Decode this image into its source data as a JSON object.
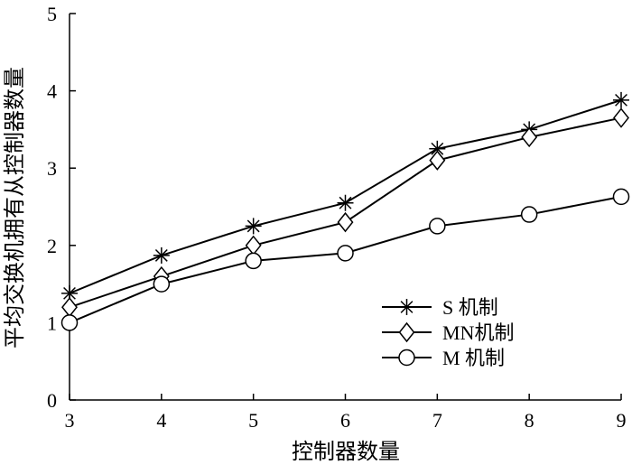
{
  "chart_data": {
    "type": "line",
    "title": "",
    "xlabel": "控制器数量",
    "ylabel": "平均交换机拥有从控制器数量",
    "x": [
      3,
      4,
      5,
      6,
      7,
      8,
      9
    ],
    "xlim": [
      3,
      9
    ],
    "ylim": [
      0,
      5
    ],
    "xticks": [
      "3",
      "4",
      "5",
      "6",
      "7",
      "8",
      "9"
    ],
    "yticks": [
      "0",
      "1",
      "2",
      "3",
      "4",
      "5"
    ],
    "grid": false,
    "legend_position": "bottom-right",
    "series": [
      {
        "name": "S 机制",
        "marker": "star",
        "values": [
          1.38,
          1.87,
          2.25,
          2.55,
          3.25,
          3.5,
          3.88
        ]
      },
      {
        "name": "MN机制",
        "marker": "diamond",
        "values": [
          1.2,
          1.6,
          2.0,
          2.3,
          3.1,
          3.4,
          3.65
        ]
      },
      {
        "name": "M 机制",
        "marker": "circle",
        "values": [
          1.0,
          1.5,
          1.8,
          1.9,
          2.25,
          2.4,
          2.63
        ]
      }
    ]
  }
}
